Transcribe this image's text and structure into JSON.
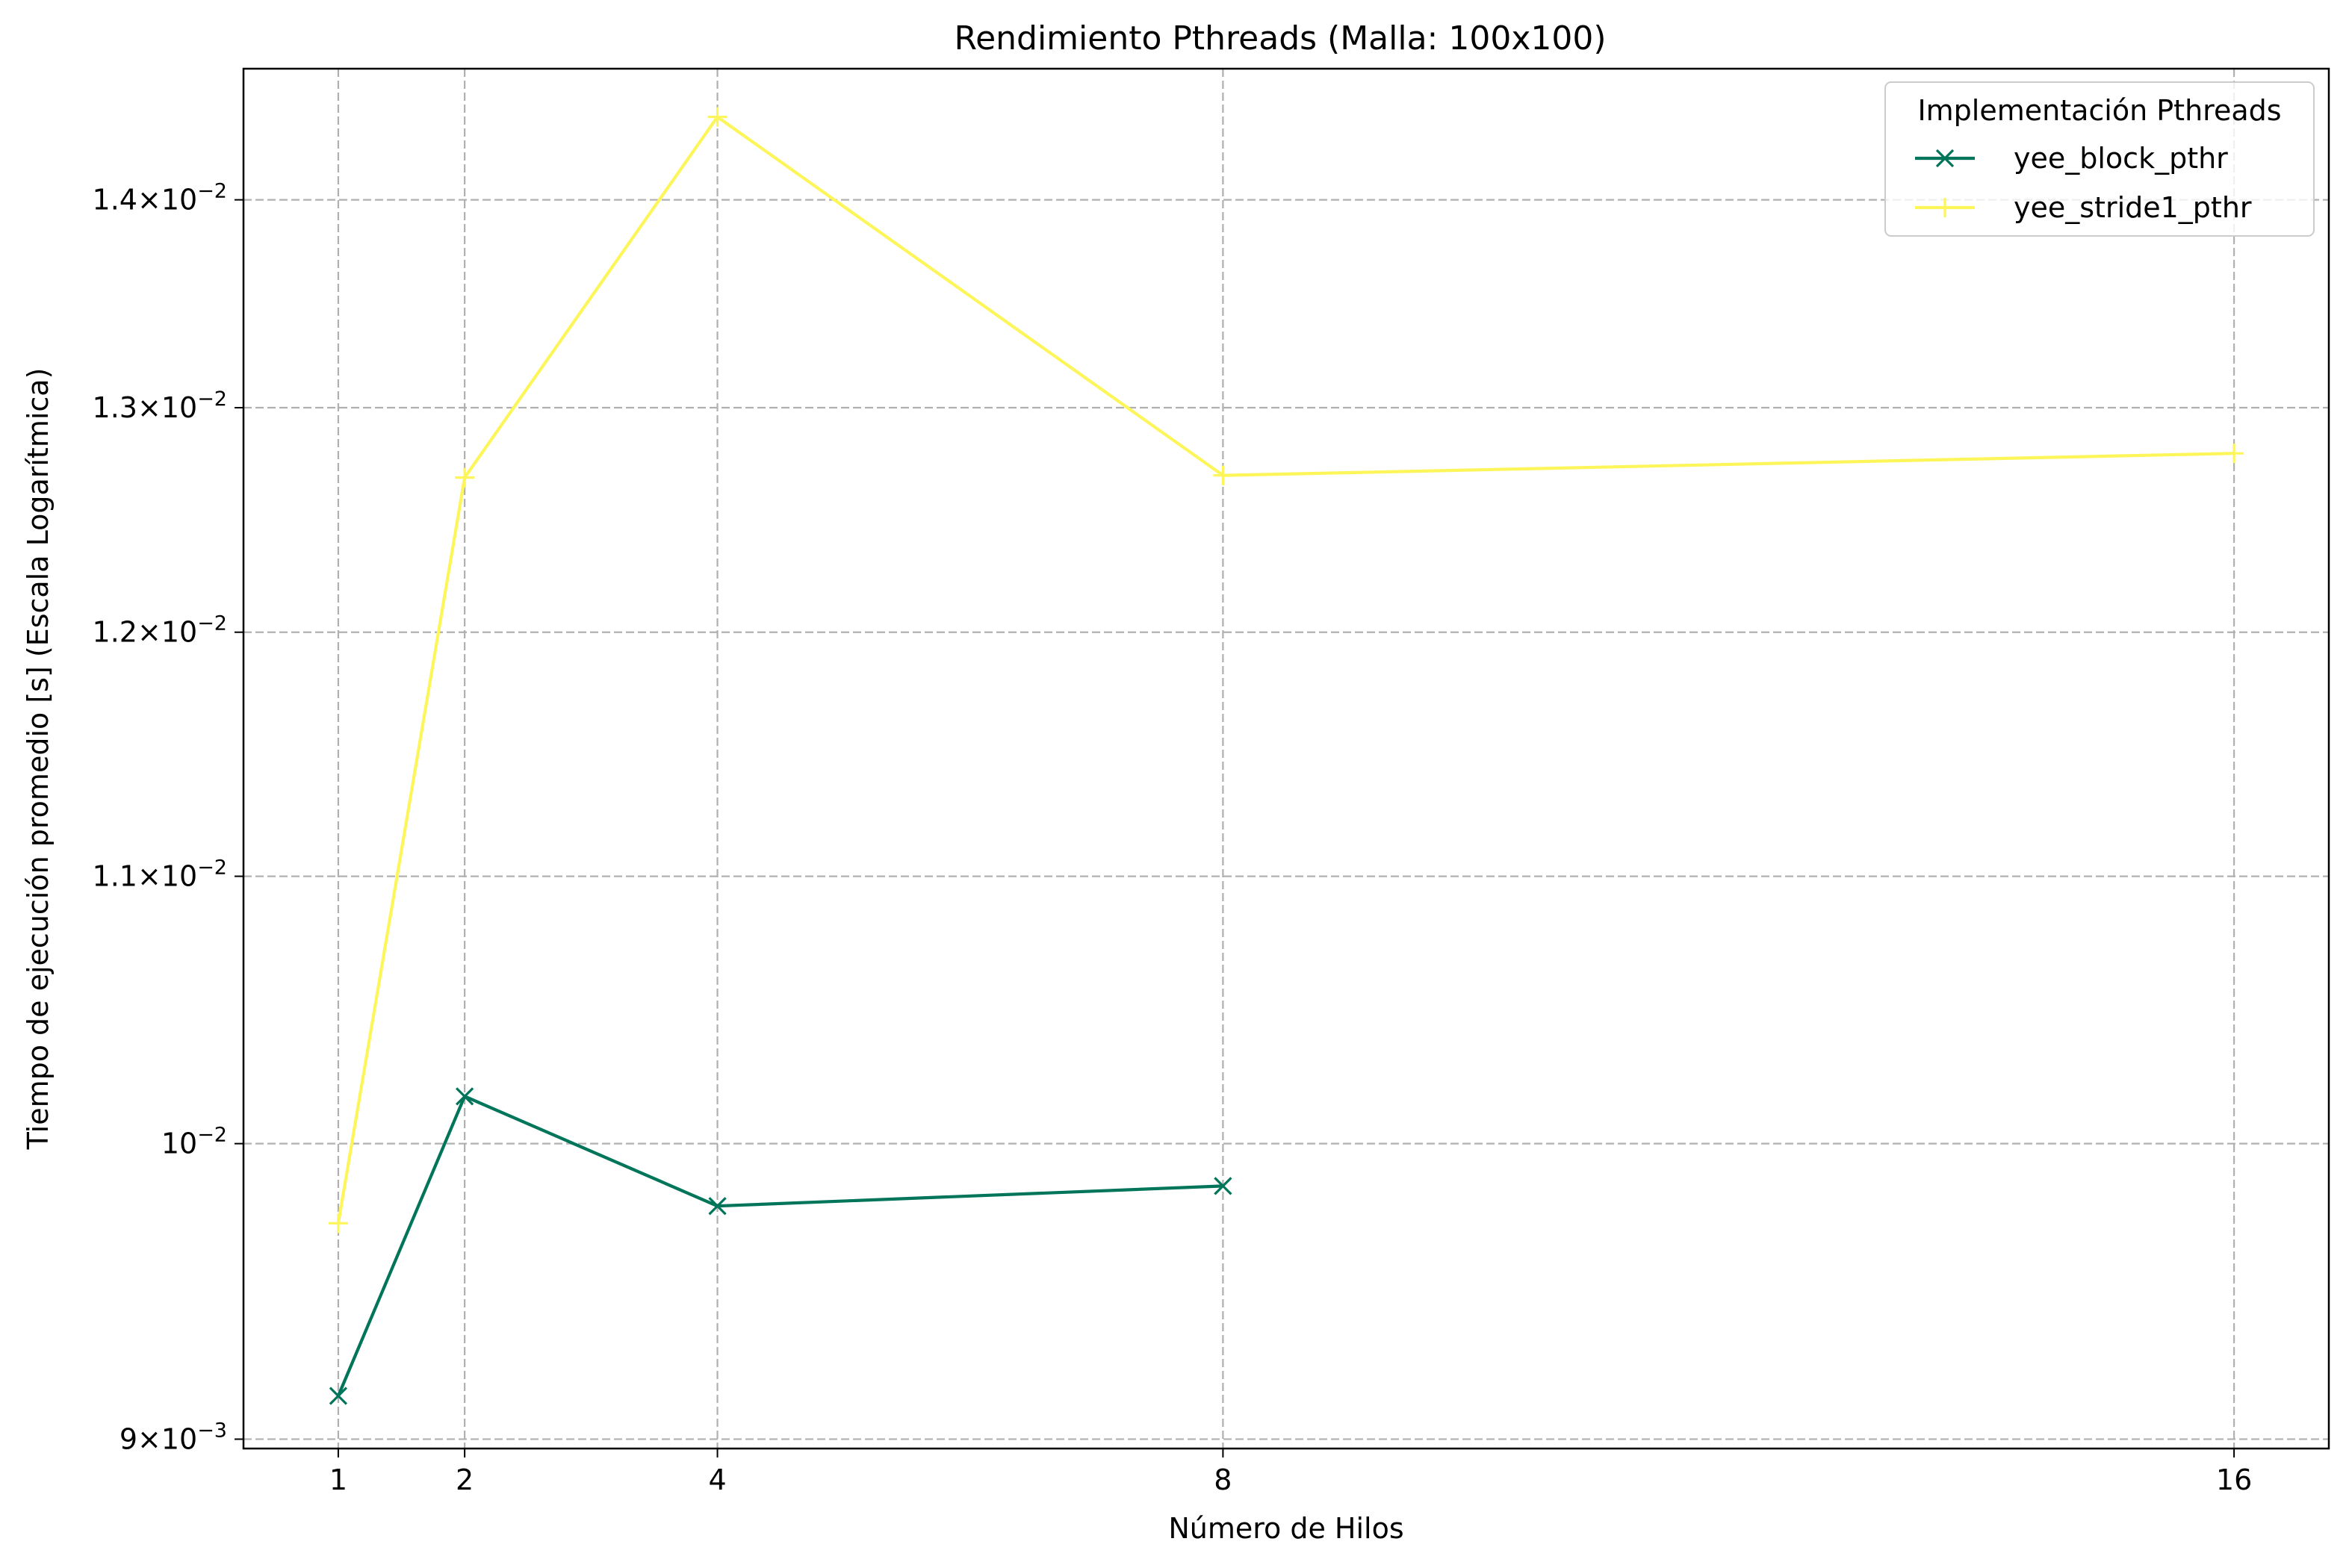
{
  "chart_data": {
    "type": "line",
    "title": "Rendimiento Pthreads (Malla: 100x100)",
    "xlabel": "Número de Hilos",
    "ylabel": "Tiempo de ejecución promedio [s] (Escala Logarítmica)",
    "x_ticks": [
      1,
      2,
      4,
      8,
      16
    ],
    "xlim": [
      0.25,
      16.75
    ],
    "yscale": "log",
    "ylim": [
      0.00897,
      0.01467
    ],
    "y_ticks": [
      {
        "value": 0.009,
        "mant": "9",
        "exp": "−3"
      },
      {
        "value": 0.01,
        "mant": "",
        "exp": "−2"
      },
      {
        "value": 0.011,
        "mant": "1.1",
        "exp": "−2"
      },
      {
        "value": 0.012,
        "mant": "1.2",
        "exp": "−2"
      },
      {
        "value": 0.013,
        "mant": "1.3",
        "exp": "−2"
      },
      {
        "value": 0.014,
        "mant": "1.4",
        "exp": "−2"
      }
    ],
    "grid": true,
    "legend_title": "Implementación Pthreads",
    "legend_position": "top-right",
    "series": [
      {
        "name": "yee_block_pthr",
        "color": "#00755a",
        "marker": "x",
        "x": [
          1,
          2,
          4,
          8
        ],
        "y": [
          0.00914,
          0.01017,
          0.00978,
          0.00985
        ]
      },
      {
        "name": "yee_stride1_pthr",
        "color": "#fdf65a",
        "marker": "+",
        "x": [
          1,
          2,
          4,
          8,
          16
        ],
        "y": [
          0.00972,
          0.01268,
          0.01442,
          0.01269,
          0.01279
        ]
      }
    ]
  }
}
